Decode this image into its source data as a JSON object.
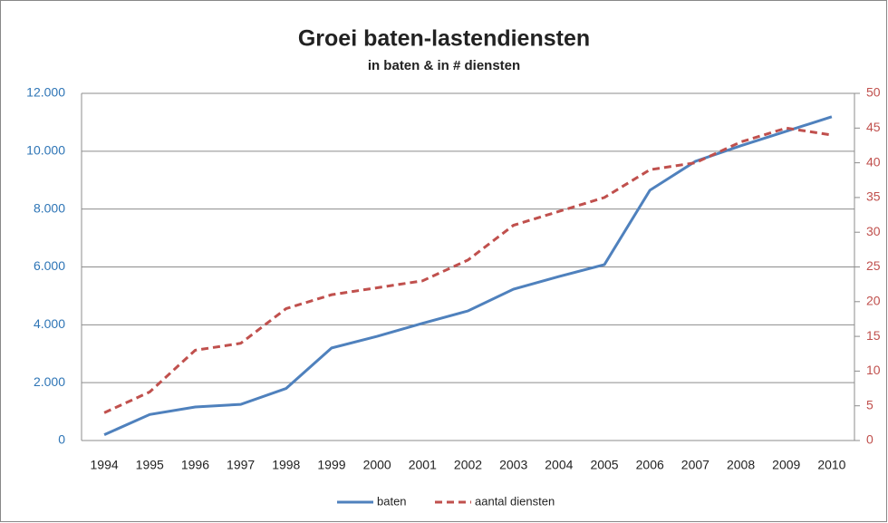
{
  "chart_data": {
    "type": "line",
    "title": "Groei baten-lastendiensten",
    "subtitle": "in baten & in # diensten",
    "categories": [
      "1994",
      "1995",
      "1996",
      "1997",
      "1998",
      "1999",
      "2000",
      "2001",
      "2002",
      "2003",
      "2004",
      "2005",
      "2006",
      "2007",
      "2008",
      "2009",
      "2010"
    ],
    "series": [
      {
        "name": "baten",
        "color": "#4f81bd",
        "dash": false,
        "axis": "y",
        "values": [
          200,
          900,
          1160,
          1250,
          1800,
          3200,
          3600,
          4050,
          4480,
          5230,
          5670,
          6080,
          8650,
          9650,
          10190,
          10690,
          11190
        ]
      },
      {
        "name": "aantal diensten",
        "color": "#c0504d",
        "dash": true,
        "axis": "y2",
        "values": [
          4,
          7,
          13,
          14,
          19,
          21,
          22,
          23,
          26,
          31,
          33,
          35,
          39,
          40,
          43,
          45,
          44
        ]
      }
    ],
    "ylim": [
      0,
      12000
    ],
    "yticks": [
      0,
      {
        "value": 2000,
        "label": "2.000"
      },
      {
        "value": 4000,
        "label": "4.000"
      },
      {
        "value": 6000,
        "label": "6.000"
      },
      {
        "value": 8000,
        "label": "8.000"
      },
      {
        "value": 10000,
        "label": "10.000"
      },
      {
        "value": 12000,
        "label": "12.000"
      }
    ],
    "y2lim": [
      0,
      50
    ],
    "y2ticks": [
      0,
      5,
      10,
      15,
      20,
      25,
      30,
      35,
      40,
      45,
      50
    ],
    "ytick_color": "#2e75b6",
    "y2tick_color": "#c0504d",
    "grid": true,
    "legend": "bottom"
  }
}
